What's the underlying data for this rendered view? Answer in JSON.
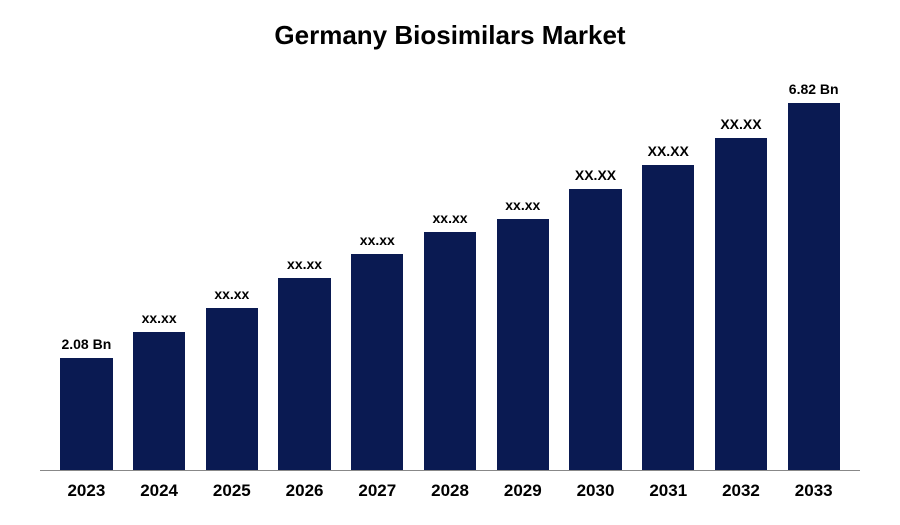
{
  "chart": {
    "type": "bar",
    "title": "Germany Biosimilars Market",
    "title_fontsize": 26,
    "title_color": "#000000",
    "background_color": "#ffffff",
    "axis_line_color": "#888888",
    "bar_color": "#0a1a52",
    "bar_width_pct": 72,
    "label_fontsize": 14,
    "xlabel_fontsize": 17,
    "ylim": [
      0,
      7.2
    ],
    "categories": [
      "2023",
      "2024",
      "2025",
      "2026",
      "2027",
      "2028",
      "2029",
      "2030",
      "2031",
      "2032",
      "2033"
    ],
    "values": [
      2.08,
      2.55,
      3.0,
      3.55,
      4.0,
      4.4,
      4.65,
      5.2,
      5.65,
      6.15,
      6.82
    ],
    "value_labels": [
      "2.08 Bn",
      "xx.xx",
      "xx.xx",
      "xx.xx",
      "xx.xx",
      "xx.xx",
      "xx.xx",
      "XX.XX",
      "XX.XX",
      "XX.XX",
      "6.82 Bn"
    ]
  }
}
